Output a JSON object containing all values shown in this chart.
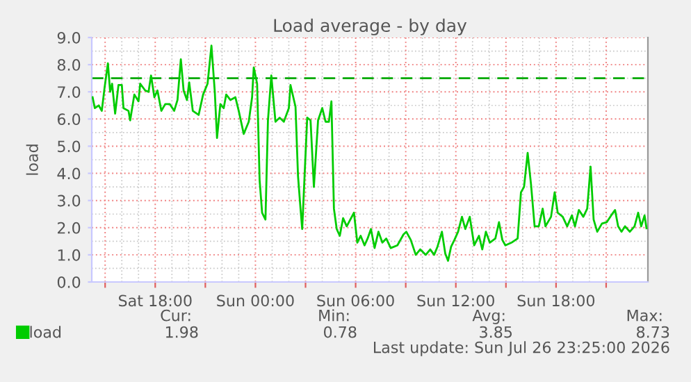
{
  "chart_data": {
    "type": "line",
    "title": "Load average - by day",
    "ylabel": "load",
    "x": [
      "2026-07-25T14:15",
      "2026-07-25T14:23",
      "2026-07-25T14:37",
      "2026-07-25T14:48",
      "2026-07-25T14:58",
      "2026-07-25T15:10",
      "2026-07-25T15:18",
      "2026-07-25T15:25",
      "2026-07-25T15:36",
      "2026-07-25T15:48",
      "2026-07-25T16:00",
      "2026-07-25T16:06",
      "2026-07-25T16:24",
      "2026-07-25T16:30",
      "2026-07-25T16:45",
      "2026-07-25T17:00",
      "2026-07-25T17:06",
      "2026-07-25T17:24",
      "2026-07-25T17:36",
      "2026-07-25T17:45",
      "2026-07-25T17:57",
      "2026-07-25T18:08",
      "2026-07-25T18:22",
      "2026-07-25T18:36",
      "2026-07-25T18:52",
      "2026-07-25T19:08",
      "2026-07-25T19:20",
      "2026-07-25T19:32",
      "2026-07-25T19:42",
      "2026-07-25T19:54",
      "2026-07-25T20:02",
      "2026-07-25T20:15",
      "2026-07-25T20:36",
      "2026-07-25T20:52",
      "2026-07-25T21:08",
      "2026-07-25T21:22",
      "2026-07-25T21:34",
      "2026-07-25T21:42",
      "2026-07-25T21:54",
      "2026-07-25T22:06",
      "2026-07-25T22:15",
      "2026-07-25T22:30",
      "2026-07-25T22:48",
      "2026-07-25T23:00",
      "2026-07-25T23:18",
      "2026-07-25T23:36",
      "2026-07-25T23:48",
      "2026-07-25T23:54",
      "2026-07-26T00:06",
      "2026-07-26T00:15",
      "2026-07-26T00:24",
      "2026-07-26T00:36",
      "2026-07-26T00:45",
      "2026-07-26T00:57",
      "2026-07-26T01:12",
      "2026-07-26T01:27",
      "2026-07-26T01:42",
      "2026-07-26T02:00",
      "2026-07-26T02:06",
      "2026-07-26T02:24",
      "2026-07-26T02:33",
      "2026-07-26T02:42",
      "2026-07-26T02:48",
      "2026-07-26T03:06",
      "2026-07-26T03:18",
      "2026-07-26T03:30",
      "2026-07-26T03:45",
      "2026-07-26T04:00",
      "2026-07-26T04:12",
      "2026-07-26T04:24",
      "2026-07-26T04:33",
      "2026-07-26T04:42",
      "2026-07-26T04:52",
      "2026-07-26T05:03",
      "2026-07-26T05:15",
      "2026-07-26T05:28",
      "2026-07-26T05:54",
      "2026-07-26T06:06",
      "2026-07-26T06:18",
      "2026-07-26T06:32",
      "2026-07-26T06:43",
      "2026-07-26T06:55",
      "2026-07-26T07:08",
      "2026-07-26T07:22",
      "2026-07-26T07:36",
      "2026-07-26T07:50",
      "2026-07-26T08:06",
      "2026-07-26T08:30",
      "2026-07-26T08:52",
      "2026-07-26T09:02",
      "2026-07-26T09:18",
      "2026-07-26T09:36",
      "2026-07-26T09:52",
      "2026-07-26T10:12",
      "2026-07-26T10:28",
      "2026-07-26T10:42",
      "2026-07-26T10:54",
      "2026-07-26T11:10",
      "2026-07-26T11:22",
      "2026-07-26T11:32",
      "2026-07-26T11:43",
      "2026-07-26T11:55",
      "2026-07-26T12:08",
      "2026-07-26T12:22",
      "2026-07-26T12:34",
      "2026-07-26T12:50",
      "2026-07-26T13:06",
      "2026-07-26T13:23",
      "2026-07-26T13:35",
      "2026-07-26T13:48",
      "2026-07-26T14:02",
      "2026-07-26T14:22",
      "2026-07-26T14:35",
      "2026-07-26T14:47",
      "2026-07-26T14:58",
      "2026-07-26T15:20",
      "2026-07-26T15:42",
      "2026-07-26T15:54",
      "2026-07-26T16:05",
      "2026-07-26T16:18",
      "2026-07-26T16:30",
      "2026-07-26T16:43",
      "2026-07-26T16:58",
      "2026-07-26T17:12",
      "2026-07-26T17:22",
      "2026-07-26T17:42",
      "2026-07-26T17:55",
      "2026-07-26T18:06",
      "2026-07-26T18:24",
      "2026-07-26T18:40",
      "2026-07-26T18:57",
      "2026-07-26T19:08",
      "2026-07-26T19:22",
      "2026-07-26T19:38",
      "2026-07-26T19:52",
      "2026-07-26T20:04",
      "2026-07-26T20:15",
      "2026-07-26T20:28",
      "2026-07-26T20:45",
      "2026-07-26T21:02",
      "2026-07-26T21:18",
      "2026-07-26T21:32",
      "2026-07-26T21:43",
      "2026-07-26T21:55",
      "2026-07-26T22:08",
      "2026-07-26T22:25",
      "2026-07-26T22:42",
      "2026-07-26T22:55",
      "2026-07-26T23:06",
      "2026-07-26T23:18",
      "2026-07-26T23:25"
    ],
    "series": [
      {
        "name": "load",
        "color": "#00cc00",
        "values": [
          6.8,
          6.4,
          6.5,
          6.3,
          7.15,
          8.05,
          7.0,
          7.3,
          6.2,
          7.25,
          7.25,
          6.4,
          6.3,
          5.95,
          6.9,
          6.65,
          7.3,
          7.05,
          7.0,
          7.6,
          6.8,
          7.05,
          6.3,
          6.55,
          6.55,
          6.3,
          6.7,
          8.2,
          7.05,
          6.7,
          7.35,
          6.3,
          6.15,
          6.9,
          7.3,
          8.7,
          7.0,
          5.3,
          6.55,
          6.4,
          6.9,
          6.7,
          6.8,
          6.3,
          5.45,
          5.9,
          6.8,
          7.9,
          7.3,
          3.75,
          2.55,
          2.3,
          5.95,
          7.6,
          5.9,
          6.05,
          5.9,
          6.4,
          7.25,
          6.45,
          3.9,
          2.7,
          1.95,
          6.05,
          5.95,
          3.5,
          5.95,
          6.4,
          5.9,
          5.9,
          6.65,
          2.7,
          1.95,
          1.7,
          2.35,
          2.05,
          2.55,
          1.45,
          1.7,
          1.35,
          1.6,
          1.95,
          1.25,
          1.85,
          1.45,
          1.6,
          1.25,
          1.35,
          1.75,
          1.85,
          1.55,
          1.0,
          1.2,
          1.0,
          1.2,
          1.0,
          1.3,
          1.85,
          1.05,
          0.78,
          1.3,
          1.55,
          1.85,
          2.4,
          1.95,
          2.4,
          1.35,
          1.7,
          1.2,
          1.85,
          1.45,
          1.6,
          2.2,
          1.55,
          1.35,
          1.45,
          1.6,
          3.3,
          3.5,
          4.75,
          3.6,
          2.05,
          2.05,
          2.7,
          2.05,
          2.4,
          3.3,
          2.55,
          2.4,
          2.05,
          2.45,
          2.05,
          2.65,
          2.4,
          2.7,
          4.25,
          2.3,
          1.85,
          2.15,
          2.2,
          2.45,
          2.65,
          2.05,
          1.85,
          2.05,
          1.85,
          2.05,
          2.55,
          2.05,
          2.45,
          1.98
        ]
      }
    ],
    "xlim": [
      "2026-07-25T14:12",
      "2026-07-26T23:30"
    ],
    "xticks": [
      {
        "value": "2026-07-25T15:00",
        "label": null
      },
      {
        "value": "2026-07-25T18:00",
        "label": "Sat 18:00"
      },
      {
        "value": "2026-07-25T21:00",
        "label": null
      },
      {
        "value": "2026-07-26T00:00",
        "label": "Sun 00:00"
      },
      {
        "value": "2026-07-26T03:00",
        "label": null
      },
      {
        "value": "2026-07-26T06:00",
        "label": "Sun 06:00"
      },
      {
        "value": "2026-07-26T09:00",
        "label": null
      },
      {
        "value": "2026-07-26T12:00",
        "label": "Sun 12:00"
      },
      {
        "value": "2026-07-26T15:00",
        "label": null
      },
      {
        "value": "2026-07-26T18:00",
        "label": "Sun 18:00"
      },
      {
        "value": "2026-07-26T21:00",
        "label": null
      }
    ],
    "ylim": [
      0,
      9
    ],
    "yticks": [
      {
        "value": 0,
        "label": "0.0"
      },
      {
        "value": 1,
        "label": "1.0"
      },
      {
        "value": 2,
        "label": "2.0"
      },
      {
        "value": 3,
        "label": "3.0"
      },
      {
        "value": 4,
        "label": "4.0"
      },
      {
        "value": 5,
        "label": "5.0"
      },
      {
        "value": 6,
        "label": "6.0"
      },
      {
        "value": 7,
        "label": "7.0"
      },
      {
        "value": 8,
        "label": "8.0"
      },
      {
        "value": 9,
        "label": "9.0"
      }
    ],
    "ref_lines": [
      {
        "axis": "y",
        "value": 7.5,
        "color": "#00aa00",
        "line_style": "dashed"
      }
    ],
    "grid": true,
    "legend": "bottom left",
    "marker": "none",
    "line_style": "solid",
    "annotations": [
      "Cur:",
      "1.98",
      "Min:",
      "0.78",
      "Avg:",
      "3.85",
      "Max:",
      "8.73",
      "Last update: Sun Jul 26 23:25:00 2026"
    ]
  }
}
